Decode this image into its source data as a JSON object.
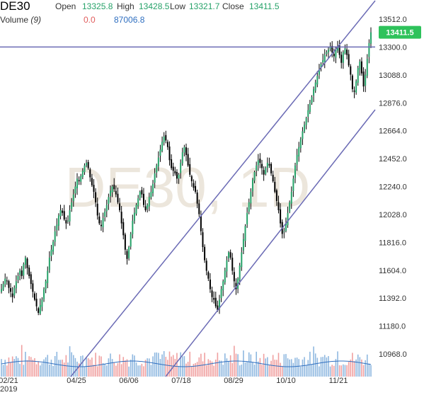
{
  "header": {
    "symbol": "DE30",
    "open_label": "Open",
    "open_value": "13325.8",
    "high_label": "High",
    "high_value": "13428.5",
    "low_label": "Low",
    "low_value": "13321.7",
    "close_label": "Close",
    "close_value": "13411.5",
    "volume_label": "Volume",
    "volume_period": "(9)",
    "volume_value_1": "0.0",
    "volume_value_2": "87006.8"
  },
  "watermark": "DE30, 1D",
  "colors": {
    "up": "#26a269",
    "down": "#e05c5c",
    "candle": "#000000",
    "trendline": "#6b6bb5",
    "volume_bar": "#8fb8e0",
    "volume_line": "#2f6fc0",
    "price_badge": "#2ec25b",
    "watermark": "#ece6dc"
  },
  "chart_data": {
    "type": "candlestick",
    "price_axis": {
      "ticks": [
        13512.0,
        13300.0,
        13088.0,
        12876.0,
        12664.0,
        12452.0,
        12240.0,
        12028.0,
        11816.0,
        11604.0,
        11392.0,
        11180.0,
        10968.0
      ],
      "ylim": [
        10968,
        13512
      ]
    },
    "time_axis": {
      "ticks": [
        "02/21",
        "04/25",
        "06/06",
        "07/18",
        "08/29",
        "10/10",
        "11/21"
      ],
      "year_label": "2019"
    },
    "last_price": "13411.5",
    "horizontal_line": 13300.0,
    "channel_lines": [
      {
        "from": [
          "04/25",
          10968
        ],
        "to": [
          "11/21",
          13600
        ]
      },
      {
        "from": [
          "07/18",
          10968
        ],
        "to": [
          "11/21",
          12820
        ]
      }
    ],
    "daily_close": [
      11460,
      11500,
      11540,
      11520,
      11470,
      11440,
      11400,
      11470,
      11520,
      11560,
      11600,
      11560,
      11650,
      11700,
      11620,
      11560,
      11500,
      11440,
      11380,
      11330,
      11280,
      11340,
      11380,
      11460,
      11520,
      11600,
      11700,
      11760,
      11820,
      11900,
      11950,
      12020,
      12060,
      12040,
      11990,
      11960,
      11980,
      12060,
      12120,
      12180,
      12240,
      12300,
      12280,
      12320,
      12360,
      12400,
      12420,
      12380,
      12310,
      12250,
      12200,
      12120,
      12020,
      11960,
      11940,
      12000,
      12050,
      12100,
      12160,
      12210,
      12240,
      12220,
      12180,
      12120,
      12060,
      11960,
      11870,
      11760,
      11690,
      11780,
      11880,
      11980,
      12040,
      12100,
      12150,
      12200,
      12180,
      12100,
      12060,
      12100,
      12160,
      12200,
      12260,
      12340,
      12400,
      12460,
      12520,
      12580,
      12620,
      12590,
      12540,
      12440,
      12380,
      12360,
      12340,
      12300,
      12330,
      12420,
      12500,
      12540,
      12480,
      12400,
      12330,
      12280,
      12230,
      12200,
      12110,
      12030,
      11900,
      11780,
      11680,
      11600,
      11540,
      11460,
      11400,
      11380,
      11330,
      11300,
      11380,
      11460,
      11520,
      11600,
      11680,
      11740,
      11700,
      11600,
      11520,
      11460,
      11540,
      11640,
      11740,
      11840,
      11940,
      12040,
      12120,
      12200,
      12290,
      12350,
      12400,
      12440,
      12420,
      12380,
      12330,
      12380,
      12420,
      12400,
      12340,
      12280,
      12200,
      12130,
      12060,
      11960,
      11880,
      11900,
      11960,
      12040,
      12120,
      12200,
      12300,
      12400,
      12480,
      12540,
      12600,
      12660,
      12710,
      12760,
      12820,
      12870,
      12920,
      12980,
      13030,
      13080,
      13130,
      13170,
      13200,
      13240,
      13260,
      13280,
      13300,
      13260,
      13230,
      13280,
      13300,
      13240,
      13180,
      13260,
      13290,
      13240,
      13160,
      13090,
      12980,
      12960,
      13040,
      13140,
      13190,
      13100,
      13000,
      13090,
      13210,
      13330,
      13411.5
    ],
    "volume_ma": 87006.8
  }
}
